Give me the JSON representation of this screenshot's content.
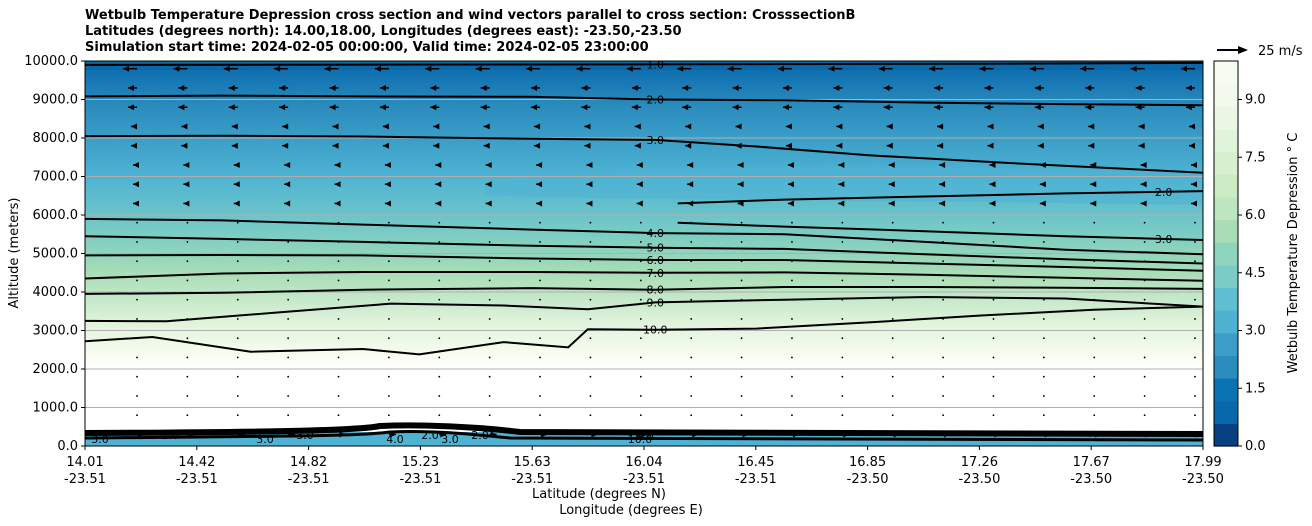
{
  "chart_data": {
    "type": "contour",
    "title": [
      "Wetbulb Temperature Depression cross section and wind vectors parallel to cross section: CrosssectionB",
      "Latitudes (degrees north): 14.00,18.00, Longitudes (degrees east): -23.50,-23.50",
      "Simulation start time: 2024-02-05 00:00:00, Valid time: 2024-02-05 23:00:00"
    ],
    "ylabel": "Altitude (meters)",
    "xlabel_lat": "Latitude (degrees N)",
    "xlabel_lon": "Longitude (degrees E)",
    "ylim": [
      0,
      10000
    ],
    "xlim": [
      14.01,
      17.99
    ],
    "yticks": [
      0,
      1000,
      2000,
      3000,
      4000,
      5000,
      6000,
      7000,
      8000,
      9000,
      10000
    ],
    "ytick_labels": [
      "0.0",
      "1000.0",
      "2000.0",
      "3000.0",
      "4000.0",
      "5000.0",
      "6000.0",
      "7000.0",
      "8000.0",
      "9000.0",
      "10000.0"
    ],
    "xticks_lat": [
      "14.01",
      "14.42",
      "14.82",
      "15.23",
      "15.63",
      "16.04",
      "16.45",
      "16.85",
      "17.26",
      "17.67",
      "17.99"
    ],
    "xticks_lon": [
      "-23.51",
      "-23.51",
      "-23.51",
      "-23.51",
      "-23.51",
      "-23.51",
      "-23.51",
      "-23.50",
      "-23.50",
      "-23.50",
      "-23.50"
    ],
    "colorbar_label": "Wetbulb Temperature Depression ° C",
    "colorbar_range": [
      0,
      10
    ],
    "colorbar_ticks": [
      "0.0",
      "1.5",
      "3.0",
      "4.5",
      "6.0",
      "7.5",
      "9.0"
    ],
    "colorbar_tick_values": [
      0,
      1.5,
      3.0,
      4.5,
      6.0,
      7.5,
      9.0
    ],
    "colors": [
      "#08306b",
      "#08589e",
      "#2b8cbe",
      "#4eb3d3",
      "#7bccc4",
      "#a8ddb5",
      "#ccebc5",
      "#e0f3db",
      "#f7fcf0",
      "#ffffff"
    ],
    "quiver_key": "25 m/s",
    "contour_lines": [
      {
        "level": "1.0",
        "label": "1.0",
        "x": [
          14.01,
          15.6,
          17.2,
          17.99
        ],
        "y": [
          9900,
          9910,
          9930,
          9950
        ]
      },
      {
        "level": "2.0",
        "label": "2.0",
        "x": [
          14.01,
          14.5,
          15.0,
          15.6,
          16.04,
          16.5,
          17.0,
          17.5,
          17.99
        ],
        "y": [
          9080,
          9100,
          9080,
          9070,
          9000,
          8980,
          8920,
          8880,
          8850
        ]
      },
      {
        "level": "3.0",
        "label": "3.0",
        "x": [
          14.01,
          14.5,
          15.0,
          15.6,
          16.04,
          16.4,
          16.8,
          17.3,
          17.99
        ],
        "y": [
          8050,
          8060,
          8040,
          7980,
          7950,
          7780,
          7550,
          7350,
          7100
        ]
      },
      {
        "level": "4.0",
        "label": "4.0",
        "x": [
          14.01,
          14.5,
          15.0,
          15.6,
          16.04,
          16.5,
          17.0,
          17.5,
          17.99
        ],
        "y": [
          5900,
          5860,
          5750,
          5620,
          5530,
          5500,
          5300,
          5100,
          4980
        ]
      },
      {
        "level": "5.0",
        "label": "5.0",
        "x": [
          14.01,
          14.5,
          15.0,
          15.6,
          16.04,
          16.5,
          17.0,
          17.5,
          17.99
        ],
        "y": [
          5450,
          5380,
          5300,
          5200,
          5150,
          5120,
          4980,
          4850,
          4740
        ]
      },
      {
        "level": "6.0",
        "label": "6.0",
        "x": [
          14.01,
          14.5,
          15.0,
          15.6,
          16.04,
          16.5,
          17.0,
          17.5,
          17.99
        ],
        "y": [
          4950,
          4960,
          4950,
          4870,
          4830,
          4830,
          4740,
          4650,
          4550
        ]
      },
      {
        "level": "7.0",
        "label": "7.0",
        "x": [
          14.01,
          14.5,
          15.0,
          15.6,
          16.04,
          16.5,
          17.0,
          17.5,
          17.99
        ],
        "y": [
          4350,
          4480,
          4520,
          4520,
          4500,
          4510,
          4450,
          4370,
          4290
        ]
      },
      {
        "level": "8.0",
        "label": "8.0",
        "x": [
          14.01,
          14.5,
          15.0,
          15.6,
          16.04,
          16.5,
          17.0,
          17.5,
          17.99
        ],
        "y": [
          3950,
          3980,
          4060,
          4100,
          4060,
          4130,
          4130,
          4110,
          4080
        ]
      },
      {
        "level": "9.0",
        "label": "9.0",
        "x": [
          14.01,
          14.3,
          14.7,
          15.1,
          15.5,
          15.8,
          16.04,
          16.5,
          17.0,
          17.5,
          17.99
        ],
        "y": [
          3250,
          3240,
          3470,
          3700,
          3650,
          3550,
          3730,
          3800,
          3870,
          3830,
          3620
        ]
      },
      {
        "level": "10.0",
        "label": "10.0",
        "x": [
          14.01,
          14.25,
          14.6,
          15.0,
          15.2,
          15.5,
          15.73,
          15.8,
          16.04,
          16.4,
          16.8,
          17.2,
          17.6,
          17.99
        ],
        "y": [
          2720,
          2830,
          2450,
          2520,
          2380,
          2700,
          2560,
          3030,
          3020,
          3050,
          3210,
          3390,
          3540,
          3620
        ]
      },
      {
        "level": "2.0",
        "label": "2.0",
        "x": [
          16.12,
          16.5,
          17.0,
          17.5,
          17.99
        ],
        "y": [
          6300,
          6400,
          6480,
          6560,
          6620
        ]
      },
      {
        "level": "3.0",
        "label": "3.0",
        "x": [
          16.12,
          16.5,
          17.0,
          17.5,
          17.99
        ],
        "y": [
          5800,
          5700,
          5580,
          5450,
          5350
        ]
      }
    ],
    "contour_labels_extra": [
      "3.0",
      "2.0",
      "3.0",
      "3.0",
      "4.0",
      "2.0",
      "3.0",
      "2.0",
      "10.0",
      "4.0"
    ]
  }
}
